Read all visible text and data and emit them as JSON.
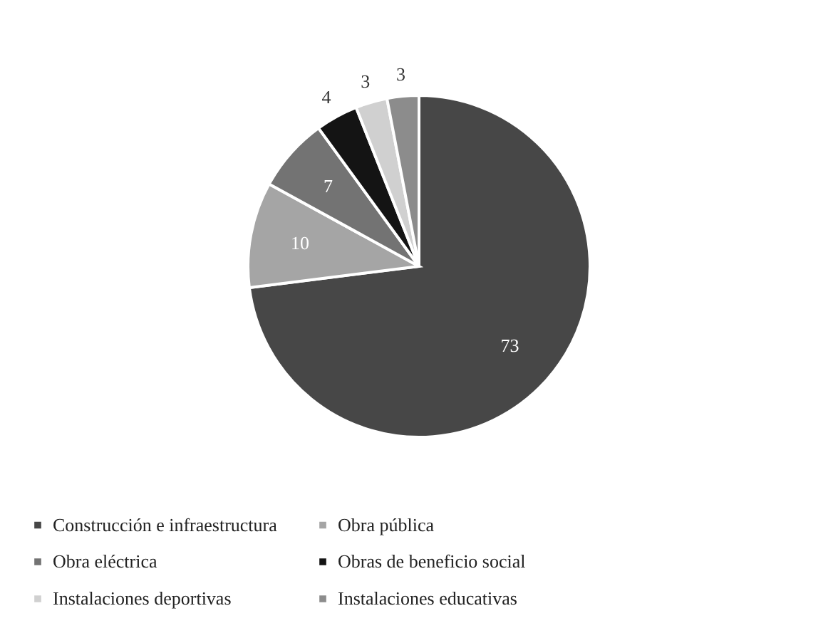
{
  "chart_data": {
    "type": "pie",
    "categories": [
      "Construcción e infraestructura",
      "Obra pública",
      "Obra eléctrica",
      "Obras de beneficio social",
      "Instalaciones deportivas",
      "Instalaciones educativas"
    ],
    "values": [
      73,
      10,
      7,
      4,
      3,
      3
    ],
    "colors": [
      "#474747",
      "#a5a5a5",
      "#737373",
      "#141414",
      "#d0d0d0",
      "#8c8c8c"
    ],
    "data_labels": true,
    "legend": "bottom"
  }
}
